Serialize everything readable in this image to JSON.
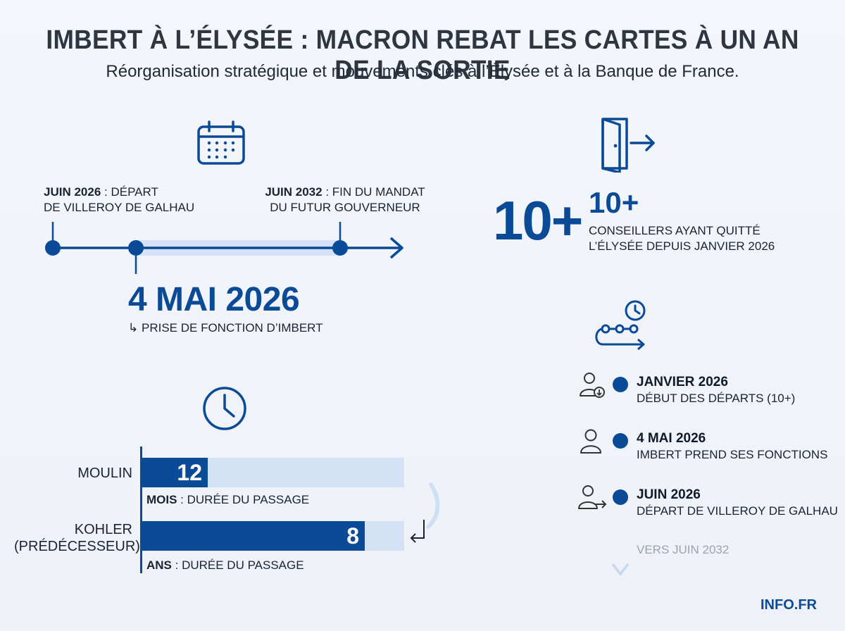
{
  "header": {
    "title": "IMBERT À L’ÉLYSÉE : MACRON REBAT LES CARTES À UN AN DE LA SORTIE",
    "subtitle": "Réorganisation stratégique et mouvements clés à l’Élysée et à la Banque de France."
  },
  "mandate_timeline": {
    "left_bold": "JUIN 2026",
    "left_rest_1": " : DÉPART",
    "left_rest_2": "DE VILLEROY DE GALHAU",
    "right_bold": "JUIN 2032",
    "right_rest_1": " : FIN DU MANDAT",
    "right_rest_2": "DU FUTUR GOUVERNEUR",
    "main_date": "4 MAI 2026",
    "main_caption": "PRISE DE FONCTION D’IMBERT",
    "caption_arrow": "↳"
  },
  "advisors": {
    "big_number": "10+",
    "number": "10+",
    "caption_1": "CONSEILLERS AYANT QUITTÉ",
    "caption_2": "L’ÉLYSÉE DEPUIS JANVIER 2026"
  },
  "duration_chart": {
    "rows": [
      {
        "name": "MOULIN",
        "value": "12",
        "fill_fraction": 0.25,
        "unit_bold": "MOIS",
        "unit_rest": " : DURÉE DU PASSAGE"
      },
      {
        "name_1": "KOHLER",
        "name_2": "(PRÉDÉCESSEUR)",
        "value": "8",
        "fill_fraction": 0.85,
        "unit_bold": "ANS",
        "unit_rest": " : DURÉE DU PASSAGE"
      }
    ]
  },
  "events_timeline": {
    "events": [
      {
        "date": "JANVIER 2026",
        "desc": "DÉBUT DES DÉPARTS (10+)",
        "icon": "person-down-icon"
      },
      {
        "date": "4 MAI 2026",
        "desc": "IMBERT PREND SES FONCTIONS",
        "icon": "person-icon"
      },
      {
        "date": "JUIN 2026",
        "desc": "DÉPART DE VILLEROY DE GALHAU",
        "icon": "person-exit-icon"
      }
    ],
    "future": "VERS JUIN 2032"
  },
  "footer": {
    "brand": "INFO.FR"
  },
  "colors": {
    "primary": "#0b4a96",
    "light": "#d3e2f5",
    "text": "#1c2330"
  }
}
